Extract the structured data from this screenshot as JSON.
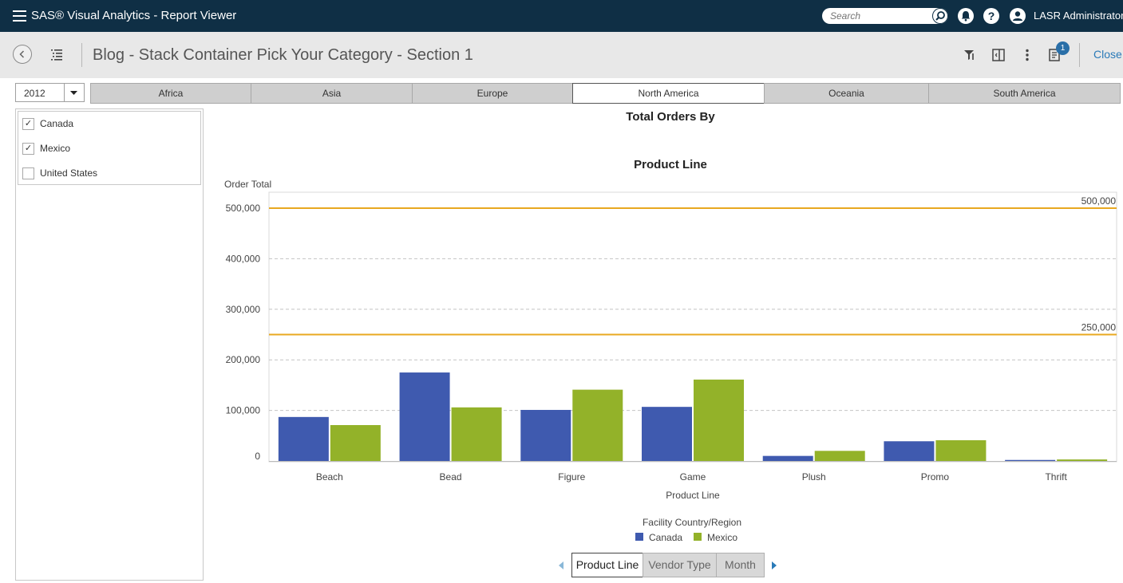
{
  "app": {
    "title": "SAS® Visual Analytics - Report Viewer"
  },
  "search": {
    "placeholder": "Search"
  },
  "user": {
    "name": "LASR Administrator"
  },
  "report": {
    "title": "Blog - Stack Container Pick Your Category - Section 1",
    "close_label": "Close",
    "badge_count": "1"
  },
  "filters": {
    "year": "2012",
    "region_tabs": [
      {
        "label": "Africa",
        "active": false
      },
      {
        "label": "Asia",
        "active": false
      },
      {
        "label": "Europe",
        "active": false
      },
      {
        "label": "North America",
        "active": true
      },
      {
        "label": "Oceania",
        "active": false
      },
      {
        "label": "South America",
        "active": false
      }
    ],
    "countries": [
      {
        "label": "Canada",
        "checked": true
      },
      {
        "label": "Mexico",
        "checked": true
      },
      {
        "label": "United States",
        "checked": false
      }
    ]
  },
  "chart_titles": {
    "line1": "Total Orders By",
    "line2": "Product Line"
  },
  "chart_data": {
    "type": "bar",
    "title": "Total Orders By Product Line",
    "xlabel": "Product Line",
    "ylabel": "Order Total",
    "categories": [
      "Beach",
      "Bead",
      "Figure",
      "Game",
      "Plush",
      "Promo",
      "Thrift"
    ],
    "series": [
      {
        "name": "Canada",
        "color": "#3f5aaf",
        "values": [
          87000,
          175000,
          101000,
          107000,
          10000,
          39000,
          2000
        ]
      },
      {
        "name": "Mexico",
        "color": "#93b229",
        "values": [
          71000,
          106000,
          141000,
          161000,
          20000,
          41000,
          3000
        ]
      }
    ],
    "ylim": [
      0,
      520000
    ],
    "yticks": [
      0,
      100000,
      200000,
      300000,
      400000,
      500000
    ],
    "ytick_labels": [
      "0",
      "100,000",
      "200,000",
      "300,000",
      "400,000",
      "500,000"
    ],
    "reference_lines": [
      {
        "value": 500000,
        "label": "500,000",
        "color": "#e8a820"
      },
      {
        "value": 250000,
        "label": "250,000",
        "color": "#e8a820"
      }
    ],
    "legend_title": "Facility Country/Region",
    "legend_position": "bottom",
    "grid": true
  },
  "pager": {
    "tabs": [
      {
        "label": "Product Line",
        "active": true
      },
      {
        "label": "Vendor Type",
        "active": false
      },
      {
        "label": "Month",
        "active": false
      }
    ]
  }
}
